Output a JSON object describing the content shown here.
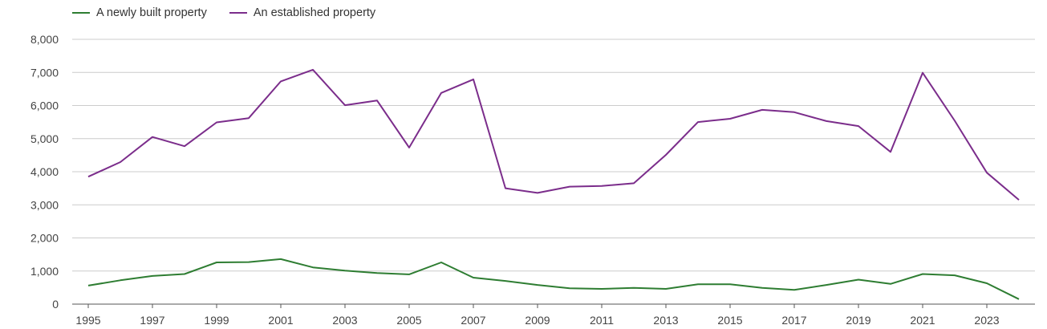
{
  "chart_data": {
    "type": "line",
    "title": "",
    "xlabel": "",
    "ylabel": "",
    "x": [
      1995,
      1996,
      1997,
      1998,
      1999,
      2000,
      2001,
      2002,
      2003,
      2004,
      2005,
      2006,
      2007,
      2008,
      2009,
      2010,
      2011,
      2012,
      2013,
      2014,
      2015,
      2016,
      2017,
      2018,
      2019,
      2020,
      2021,
      2022,
      2023,
      2024
    ],
    "x_ticks": [
      "1995",
      "1997",
      "1999",
      "2001",
      "2003",
      "2005",
      "2007",
      "2009",
      "2011",
      "2013",
      "2015",
      "2017",
      "2019",
      "2021",
      "2023"
    ],
    "y_ticks": [
      "0",
      "1,000",
      "2,000",
      "3,000",
      "4,000",
      "5,000",
      "6,000",
      "7,000",
      "8,000"
    ],
    "ylim": [
      0,
      8000
    ],
    "grid": true,
    "legend_position": "top-left",
    "series": [
      {
        "name": "A newly built property",
        "color": "#2e7d32",
        "values": [
          560,
          720,
          850,
          910,
          1260,
          1270,
          1360,
          1110,
          1010,
          940,
          900,
          1260,
          800,
          700,
          580,
          480,
          460,
          490,
          460,
          600,
          600,
          490,
          430,
          580,
          740,
          610,
          910,
          870,
          630,
          150
        ]
      },
      {
        "name": "An established property",
        "color": "#7b2d8b",
        "values": [
          3850,
          4290,
          5050,
          4770,
          5490,
          5620,
          6730,
          7080,
          6010,
          6150,
          4730,
          6380,
          6790,
          3500,
          3360,
          3550,
          3570,
          3650,
          4510,
          5500,
          5600,
          5870,
          5800,
          5530,
          5380,
          4600,
          6990,
          5540,
          3970,
          3150
        ]
      }
    ]
  }
}
